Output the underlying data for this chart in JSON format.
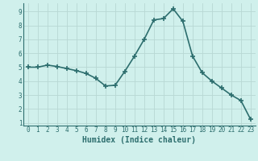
{
  "x": [
    0,
    1,
    2,
    3,
    4,
    5,
    6,
    7,
    8,
    9,
    10,
    11,
    12,
    13,
    14,
    15,
    16,
    17,
    18,
    19,
    20,
    21,
    22,
    23
  ],
  "y": [
    5.0,
    5.0,
    5.15,
    5.05,
    4.9,
    4.75,
    4.55,
    4.2,
    3.65,
    3.7,
    4.7,
    5.8,
    7.0,
    8.4,
    8.5,
    9.2,
    8.3,
    5.8,
    4.6,
    4.0,
    3.5,
    3.0,
    2.6,
    1.25
  ],
  "line_color": "#2d6e6e",
  "marker": "+",
  "marker_size": 4,
  "marker_lw": 1.2,
  "bg_color": "#d0f0ec",
  "grid_color": "#b8d8d4",
  "xlabel": "Humidex (Indice chaleur)",
  "xlim": [
    -0.5,
    23.5
  ],
  "ylim": [
    0.8,
    9.6
  ],
  "yticks": [
    1,
    2,
    3,
    4,
    5,
    6,
    7,
    8,
    9
  ],
  "xticks": [
    0,
    1,
    2,
    3,
    4,
    5,
    6,
    7,
    8,
    9,
    10,
    11,
    12,
    13,
    14,
    15,
    16,
    17,
    18,
    19,
    20,
    21,
    22,
    23
  ],
  "tick_color": "#2d6e6e",
  "xlabel_color": "#2d6e6e",
  "tick_fontsize": 5.5,
  "xlabel_fontsize": 7,
  "linewidth": 1.2
}
